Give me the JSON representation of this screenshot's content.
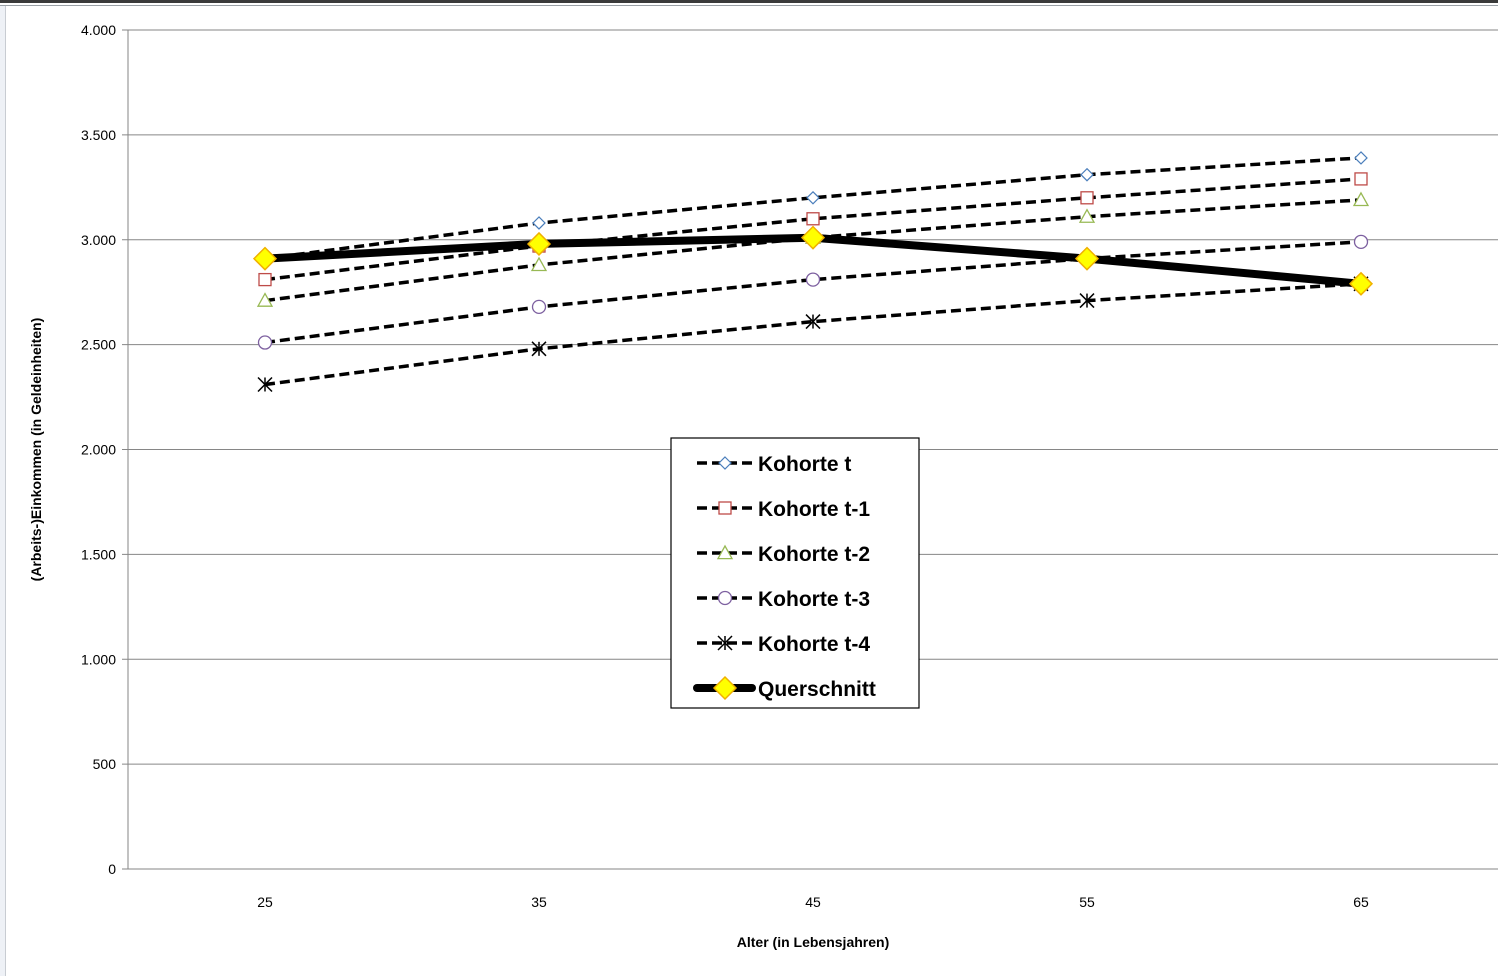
{
  "chart_data": {
    "type": "line",
    "x": [
      25,
      35,
      45,
      55,
      65
    ],
    "x_tick_labels": [
      "25",
      "35",
      "45",
      "55",
      "65"
    ],
    "xlabel": "Alter (in Lebensjahren)",
    "ylabel": "(Arbeits-)Einkommen (in Geldeinheiten)",
    "ylim": [
      0,
      4000
    ],
    "y_ticks": [
      0,
      500,
      1000,
      1500,
      2000,
      2500,
      3000,
      3500,
      4000
    ],
    "y_tick_labels": [
      "0",
      "500",
      "1.000",
      "1.500",
      "2.000",
      "2.500",
      "3.000",
      "3.500",
      "4.000"
    ],
    "grid": "horizontal",
    "legend_position": "center",
    "series": [
      {
        "name": "Kohorte t",
        "values": [
          2910,
          3080,
          3200,
          3310,
          3390
        ],
        "marker": "diamond-icon",
        "color": "#4a7ebb",
        "line": "dashed"
      },
      {
        "name": "Kohorte t-1",
        "values": [
          2810,
          2970,
          3100,
          3200,
          3290
        ],
        "marker": "square-icon",
        "color": "#be4b48",
        "line": "dashed"
      },
      {
        "name": "Kohorte t-2",
        "values": [
          2710,
          2880,
          3010,
          3110,
          3190
        ],
        "marker": "triangle-icon",
        "color": "#98b954",
        "line": "dashed"
      },
      {
        "name": "Kohorte t-3",
        "values": [
          2510,
          2680,
          2810,
          2910,
          2990
        ],
        "marker": "circle-icon",
        "color": "#7d60a0",
        "line": "dashed"
      },
      {
        "name": "Kohorte t-4",
        "values": [
          2310,
          2480,
          2610,
          2710,
          2790
        ],
        "marker": "asterisk-icon",
        "color": "#000000",
        "line": "dashed"
      },
      {
        "name": "Querschnitt",
        "values": [
          2910,
          2980,
          3010,
          2910,
          2790
        ],
        "marker": "diamond-filled-icon",
        "color": "#000000",
        "marker_fill": "#ffff00",
        "marker_stroke": "#f0b000",
        "line": "solid-thick"
      }
    ]
  }
}
